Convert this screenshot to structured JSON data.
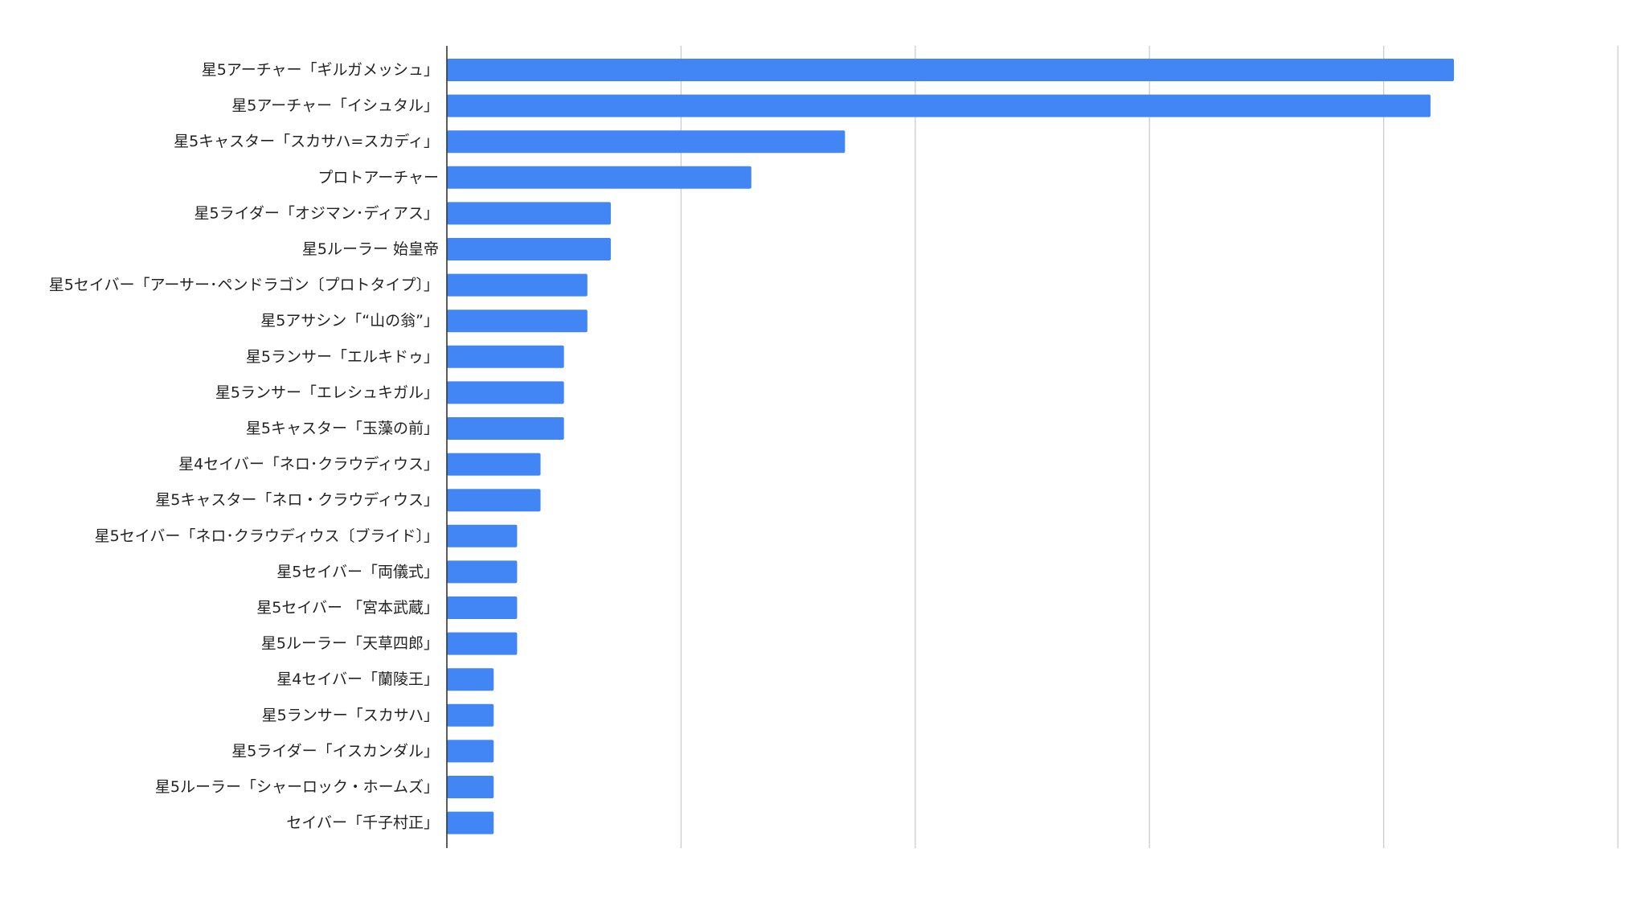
{
  "chart_data": {
    "type": "bar",
    "orientation": "horizontal",
    "categories": [
      "星5アーチャー「ギルガメッシュ」",
      "星5アーチャー「イシュタル」",
      "星5キャスター「スカサハ=スカディ」",
      "プロトアーチャー",
      "星5ライダー「オジマン･ディアス」",
      "星5ルーラー 始皇帝",
      "星5セイバー「アーサー･ペンドラゴン〔プロトタイプ〕」",
      "星5アサシン「“山の翁”」",
      "星5ランサー「エルキドゥ」",
      "星5ランサー「エレシュキガル」",
      "星5キャスター「玉藻の前」",
      "星4セイバー「ネロ･クラウディウス」",
      "星5キャスター「ネロ・クラウディウス」",
      "星5セイバー「ネロ･クラウディウス〔ブライド〕」",
      "星5セイバー「両儀式」",
      "星5セイバー 「宮本武蔵」",
      "星5ルーラー「天草四郎」",
      "星4セイバー「蘭陵王」",
      "星5ランサー「スカサハ」",
      "星5ライダー「イスカンダル」",
      "星5ルーラー「シャーロック・ホームズ」",
      "セイバー「千子村正」"
    ],
    "values": [
      43,
      42,
      17,
      13,
      7,
      7,
      6,
      6,
      5,
      5,
      5,
      4,
      4,
      3,
      3,
      3,
      3,
      2,
      2,
      2,
      2,
      2
    ],
    "xlim": [
      0,
      50
    ],
    "x_gridlines": [
      0,
      10,
      20,
      30,
      40,
      50
    ],
    "grid": true,
    "legend": "none",
    "bar_color": "#4285f4",
    "grid_color": "#cccccc",
    "axis_color": "#333333",
    "label_color": "#222222"
  }
}
